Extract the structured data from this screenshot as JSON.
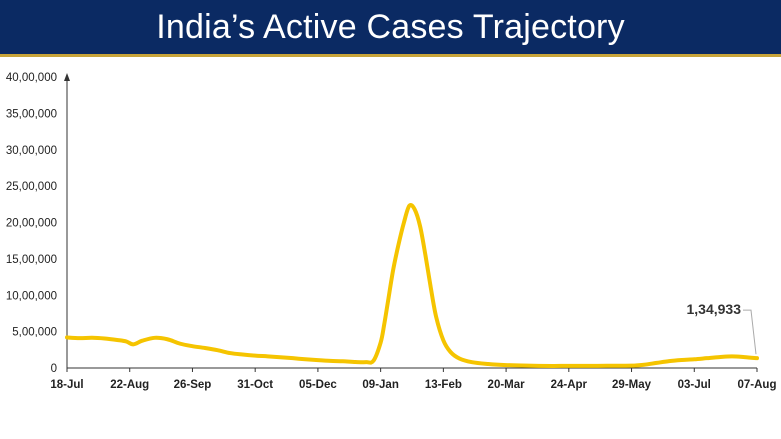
{
  "header": {
    "title": "India’s Active Cases Trajectory"
  },
  "colors": {
    "title_bg": "#0b2a63",
    "accent": "#c8a43a",
    "series": "#f5c400",
    "axis": "#333333"
  },
  "chart_data": {
    "type": "line",
    "title": "India’s Active Cases Trajectory",
    "xlabel": "",
    "ylabel": "",
    "x_range": [
      "2020-07-18",
      "2021-08-07"
    ],
    "ylim": [
      0,
      4000000
    ],
    "y_ticks": [
      {
        "value": 0,
        "label": "0"
      },
      {
        "value": 500000,
        "label": "5,00,000"
      },
      {
        "value": 1000000,
        "label": "10,00,000"
      },
      {
        "value": 1500000,
        "label": "15,00,000"
      },
      {
        "value": 2000000,
        "label": "20,00,000"
      },
      {
        "value": 2500000,
        "label": "25,00,000"
      },
      {
        "value": 3000000,
        "label": "30,00,000"
      },
      {
        "value": 3500000,
        "label": "35,00,000"
      },
      {
        "value": 4000000,
        "label": "40,00,000"
      }
    ],
    "x_ticks": [
      {
        "date": "2020-07-18",
        "label": "18-Jul"
      },
      {
        "date": "2020-08-22",
        "label": "22-Aug"
      },
      {
        "date": "2020-09-26",
        "label": "26-Sep"
      },
      {
        "date": "2020-10-31",
        "label": "31-Oct"
      },
      {
        "date": "2020-12-05",
        "label": "05-Dec"
      },
      {
        "date": "2021-01-09",
        "label": "09-Jan"
      },
      {
        "date": "2021-02-13",
        "label": "13-Feb"
      },
      {
        "date": "2021-03-20",
        "label": "20-Mar"
      },
      {
        "date": "2021-04-24",
        "label": "24-Apr"
      },
      {
        "date": "2021-05-29",
        "label": "29-May"
      },
      {
        "date": "2021-07-03",
        "label": "03-Jul"
      },
      {
        "date": "2021-08-07",
        "label": "07-Aug"
      }
    ],
    "grid": false,
    "legend": "none",
    "series": [
      {
        "points": [
          [
            "2020-07-18",
            420000
          ],
          [
            "2020-07-25",
            410000
          ],
          [
            "2020-08-01",
            415000
          ],
          [
            "2020-08-08",
            405000
          ],
          [
            "2020-08-15",
            385000
          ],
          [
            "2020-08-20",
            365000
          ],
          [
            "2020-08-24",
            325000
          ],
          [
            "2020-08-29",
            375000
          ],
          [
            "2020-09-05",
            415000
          ],
          [
            "2020-09-12",
            395000
          ],
          [
            "2020-09-19",
            335000
          ],
          [
            "2020-09-26",
            300000
          ],
          [
            "2020-10-03",
            275000
          ],
          [
            "2020-10-10",
            245000
          ],
          [
            "2020-10-17",
            205000
          ],
          [
            "2020-10-24",
            185000
          ],
          [
            "2020-10-31",
            170000
          ],
          [
            "2020-11-07",
            160000
          ],
          [
            "2020-11-14",
            148000
          ],
          [
            "2020-11-21",
            135000
          ],
          [
            "2020-11-28",
            120000
          ],
          [
            "2020-12-05",
            108000
          ],
          [
            "2020-12-12",
            98000
          ],
          [
            "2020-12-19",
            92000
          ],
          [
            "2020-12-26",
            82000
          ],
          [
            "2021-01-01",
            80000
          ],
          [
            "2021-01-05",
            100000
          ],
          [
            "2021-01-09",
            350000
          ],
          [
            "2021-01-11",
            600000
          ],
          [
            "2021-01-13",
            900000
          ],
          [
            "2021-01-16",
            1350000
          ],
          [
            "2021-01-19",
            1700000
          ],
          [
            "2021-01-22",
            2000000
          ],
          [
            "2021-01-25",
            2230000
          ],
          [
            "2021-01-28",
            2180000
          ],
          [
            "2021-01-31",
            1950000
          ],
          [
            "2021-02-03",
            1550000
          ],
          [
            "2021-02-06",
            1100000
          ],
          [
            "2021-02-09",
            700000
          ],
          [
            "2021-02-13",
            380000
          ],
          [
            "2021-02-17",
            220000
          ],
          [
            "2021-02-22",
            130000
          ],
          [
            "2021-03-01",
            80000
          ],
          [
            "2021-03-10",
            55000
          ],
          [
            "2021-03-20",
            40000
          ],
          [
            "2021-04-01",
            32000
          ],
          [
            "2021-04-15",
            28000
          ],
          [
            "2021-04-24",
            30000
          ],
          [
            "2021-05-10",
            30000
          ],
          [
            "2021-05-29",
            32000
          ],
          [
            "2021-06-05",
            45000
          ],
          [
            "2021-06-12",
            70000
          ],
          [
            "2021-06-19",
            95000
          ],
          [
            "2021-06-26",
            110000
          ],
          [
            "2021-07-03",
            120000
          ],
          [
            "2021-07-10",
            135000
          ],
          [
            "2021-07-17",
            150000
          ],
          [
            "2021-07-24",
            160000
          ],
          [
            "2021-07-31",
            150000
          ],
          [
            "2021-08-07",
            134933
          ]
        ]
      }
    ],
    "annotations": [
      {
        "date": "2021-08-07",
        "value": 134933,
        "text": "1,34,933"
      }
    ]
  }
}
